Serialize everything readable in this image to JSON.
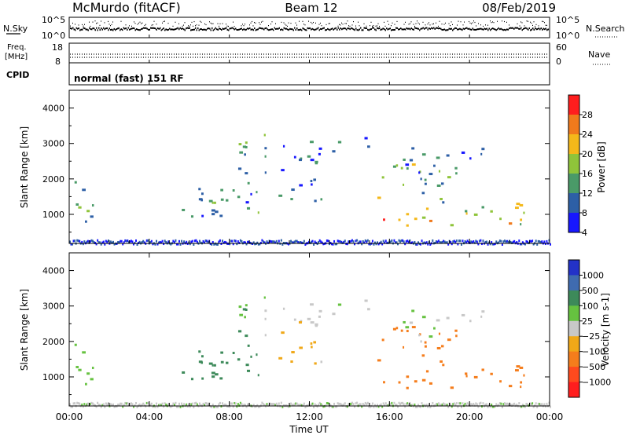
{
  "header": {
    "station": "McMurdo (fitACF)",
    "beam": "Beam 12",
    "date": "08/Feb/2019"
  },
  "noise_panel": {
    "left_label": "N.Sky",
    "right_label": "N.Search",
    "y_ticks": [
      "10^5",
      "10^0"
    ]
  },
  "freq_panel": {
    "left_label_line1": "Freq.",
    "left_label_line2": "[MHz]",
    "right_label": "Nave",
    "left_ticks": [
      "18",
      "8"
    ],
    "right_ticks": [
      "60",
      "0"
    ]
  },
  "cpid_panel": {
    "label": "CPID",
    "mode": "normal (fast) 151 RF"
  },
  "power_panel": {
    "ylabel": "Slant Range [km]",
    "colorbar_label": "Power [dB]",
    "colorbar_ticks": [
      "28",
      "24",
      "20",
      "16",
      "12",
      "8",
      "4"
    ],
    "colorbar_colors": [
      "#ff1e1e",
      "#f07a1c",
      "#f4b81a",
      "#8fc43a",
      "#4a9a68",
      "#2d5fa6",
      "#1717ff"
    ]
  },
  "velocity_panel": {
    "ylabel": "Slant Range [km]",
    "colorbar_label": "Velocity [m s-1]",
    "colorbar_ticks": [
      "1000",
      "500",
      "100",
      "25",
      "−25",
      "−100",
      "−500",
      "−1000"
    ],
    "colorbar_colors": [
      "#2332c8",
      "#3f6bb0",
      "#3d8a5a",
      "#66c240",
      "#c8c8c8",
      "#f0a818",
      "#f57d1c",
      "#ff4a1e",
      "#ff1e1e"
    ]
  },
  "x_axis": {
    "label": "Time UT",
    "ticks": [
      "00:00",
      "04:00",
      "08:00",
      "12:00",
      "16:00",
      "20:00",
      "00:00"
    ]
  },
  "chart_data": {
    "type": "heatmap",
    "x": {
      "label": "Time UT",
      "range": [
        0,
        24
      ],
      "ticks": [
        "00:00",
        "04:00",
        "08:00",
        "12:00",
        "16:00",
        "20:00",
        "00:00"
      ]
    },
    "y": {
      "label": "Slant Range [km]",
      "range": [
        180,
        4500
      ],
      "ticks": [
        1000,
        2000,
        3000,
        4000
      ]
    },
    "power_scale": {
      "label": "Power [dB]",
      "range": [
        0,
        30
      ],
      "ticks": [
        4,
        8,
        12,
        16,
        20,
        24,
        28
      ]
    },
    "velocity_scale": {
      "label": "Velocity [m s-1]",
      "ticks": [
        1000,
        500,
        100,
        25,
        -25,
        -100,
        -500,
        -1000
      ]
    },
    "echo_regions": [
      {
        "t0": 0.05,
        "t1": 1.3,
        "r0": 700,
        "r1": 2100,
        "power": 10,
        "velocity": 60
      },
      {
        "t0": 3.4,
        "t1": 3.7,
        "r0": 1400,
        "r1": 1600,
        "power": 6,
        "velocity": 60
      },
      {
        "t0": 5.6,
        "t1": 9.6,
        "r0": 800,
        "r1": 2200,
        "power": 10,
        "velocity": 200
      },
      {
        "t0": 7.4,
        "t1": 8.8,
        "r0": 2300,
        "r1": 3100,
        "power": 12,
        "velocity": 100
      },
      {
        "t0": 8.4,
        "t1": 10.0,
        "r0": 2900,
        "r1": 3350,
        "power": 18,
        "velocity": 60
      },
      {
        "t0": 9.4,
        "t1": 12.5,
        "r0": 2050,
        "r1": 3100,
        "power": 8,
        "velocity": 0
      },
      {
        "t0": 10.3,
        "t1": 12.8,
        "r0": 1400,
        "r1": 2100,
        "power": 9,
        "velocity": -40
      },
      {
        "t0": 12.0,
        "t1": 15.0,
        "r0": 2700,
        "r1": 3200,
        "power": 9,
        "velocity": 0
      },
      {
        "t0": 15.1,
        "t1": 19.3,
        "r0": 1350,
        "r1": 2450,
        "power": 14,
        "velocity": -300
      },
      {
        "t0": 15.0,
        "t1": 23.2,
        "r0": 700,
        "r1": 1400,
        "power": 18,
        "velocity": -250
      },
      {
        "t0": 16.5,
        "t1": 18.5,
        "r0": 2000,
        "r1": 3000,
        "power": 10,
        "velocity": 30
      },
      {
        "t0": 18.2,
        "t1": 21.3,
        "r0": 2400,
        "r1": 2900,
        "power": 8,
        "velocity": 0
      },
      {
        "t0": 15.5,
        "t1": 17.0,
        "r0": 750,
        "r1": 1000,
        "power": 28,
        "velocity": -400
      }
    ],
    "ground_scatter_band": {
      "range_km": [
        180,
        300
      ],
      "power": 6,
      "velocity": 0
    }
  }
}
